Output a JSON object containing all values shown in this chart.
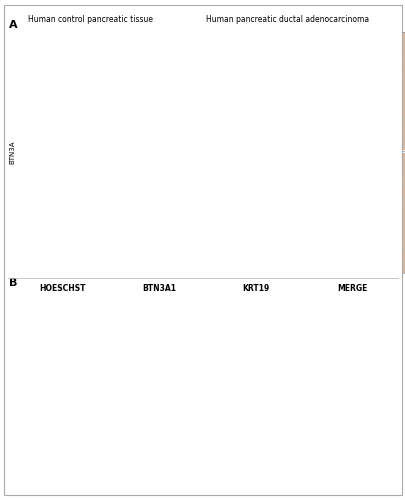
{
  "fig_width": 4.06,
  "fig_height": 5.0,
  "dpi": 100,
  "background_color": "#ffffff",
  "panel_A_label": "A",
  "panel_B_label": "B",
  "col_header_left": "Human control pancreatic tissue",
  "col_header_right": "Human pancreatic ductal adenocarcinoma",
  "row_label_A": "BTN3A",
  "col_headers_B": [
    "HOESCHST",
    "BTN3A1",
    "KRT19",
    "MERGE"
  ],
  "header_fontsize": 5.5,
  "label_fontsize": 5,
  "panel_label_fontsize": 8,
  "col_header_B_fontsize": 5.5
}
